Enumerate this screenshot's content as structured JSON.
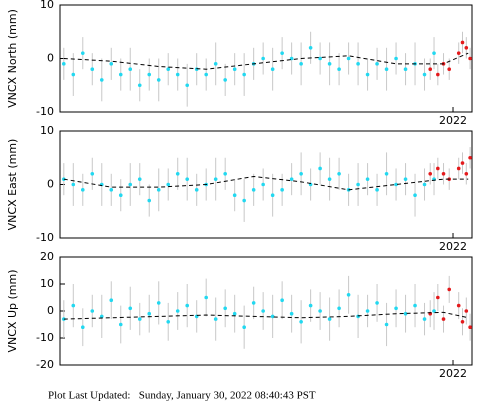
{
  "chart_data": [
    {
      "type": "scatter",
      "ylabel": "VNCX North (mm)",
      "xlim": [
        2019.93,
        2022.1
      ],
      "xticks": [
        2022
      ],
      "ylim": [
        -10,
        10
      ],
      "yticks": [
        -10,
        0,
        10
      ],
      "series": [
        {
          "color": "#22d8f0",
          "x": [
            2019.95,
            2020.0,
            2020.05,
            2020.1,
            2020.15,
            2020.2,
            2020.25,
            2020.3,
            2020.35,
            2020.4,
            2020.45,
            2020.5,
            2020.55,
            2020.6,
            2020.65,
            2020.7,
            2020.75,
            2020.8,
            2020.85,
            2020.9,
            2020.95,
            2021.0,
            2021.05,
            2021.1,
            2021.15,
            2021.2,
            2021.25,
            2021.3,
            2021.35,
            2021.4,
            2021.45,
            2021.5,
            2021.55,
            2021.6,
            2021.65,
            2021.7,
            2021.75,
            2021.8,
            2021.85,
            2021.9
          ],
          "values": [
            -1,
            -3,
            1,
            -2,
            -4,
            -1,
            -3,
            -2,
            -5,
            -3,
            -4,
            -2,
            -3,
            -5,
            -2,
            -3,
            -1,
            -4,
            -2,
            -3,
            -1,
            0,
            -2,
            1,
            0,
            -1,
            2,
            0,
            -1,
            -2,
            0,
            -1,
            -3,
            -1,
            -2,
            0,
            -2,
            -1,
            -3,
            1
          ],
          "errors": [
            3,
            4,
            3,
            3,
            4,
            3,
            3,
            4,
            3,
            3,
            4,
            3,
            3,
            4,
            3,
            3,
            4,
            3,
            3,
            4,
            3,
            3,
            4,
            3,
            3,
            4,
            3,
            3,
            4,
            3,
            3,
            4,
            3,
            3,
            4,
            3,
            3,
            4,
            3,
            3
          ]
        },
        {
          "color": "#e41a1c",
          "x": [
            2021.88,
            2021.92,
            2021.95,
            2021.98,
            2022.03,
            2022.05,
            2022.07,
            2022.09
          ],
          "values": [
            -2,
            -3,
            -1,
            -2,
            1,
            3,
            2,
            0
          ],
          "errors": [
            2,
            2,
            2,
            2,
            2,
            2,
            2,
            2
          ]
        },
        {
          "color": "#000000",
          "dashed": true,
          "x": [
            2019.95,
            2020.2,
            2020.45,
            2020.7,
            2020.95,
            2021.2,
            2021.45,
            2021.7,
            2021.95,
            2022.08
          ],
          "values": [
            0,
            -0.5,
            -1.5,
            -2,
            -1,
            0,
            0.5,
            -1,
            -1,
            1
          ]
        }
      ]
    },
    {
      "type": "scatter",
      "ylabel": "VNCX East (mm)",
      "xlim": [
        2019.93,
        2022.1
      ],
      "xticks": [
        2022
      ],
      "ylim": [
        -10,
        10
      ],
      "yticks": [
        -10,
        0,
        10
      ],
      "series": [
        {
          "color": "#22d8f0",
          "x": [
            2019.95,
            2020.0,
            2020.05,
            2020.1,
            2020.15,
            2020.2,
            2020.25,
            2020.3,
            2020.35,
            2020.4,
            2020.45,
            2020.5,
            2020.55,
            2020.6,
            2020.65,
            2020.7,
            2020.75,
            2020.8,
            2020.85,
            2020.9,
            2020.95,
            2021.0,
            2021.05,
            2021.1,
            2021.15,
            2021.2,
            2021.25,
            2021.3,
            2021.35,
            2021.4,
            2021.45,
            2021.5,
            2021.55,
            2021.6,
            2021.65,
            2021.7,
            2021.75,
            2021.8,
            2021.85,
            2021.9
          ],
          "values": [
            1,
            0,
            -1,
            2,
            0,
            -1,
            -2,
            0,
            1,
            -3,
            -1,
            0,
            2,
            1,
            -1,
            0,
            1,
            2,
            -2,
            -3,
            -1,
            0,
            -2,
            -1,
            1,
            2,
            0,
            3,
            1,
            2,
            -1,
            0,
            1,
            -1,
            2,
            0,
            1,
            -2,
            0,
            1
          ],
          "errors": [
            3,
            4,
            3,
            3,
            4,
            3,
            3,
            4,
            3,
            3,
            4,
            3,
            3,
            4,
            3,
            3,
            4,
            3,
            3,
            4,
            3,
            3,
            4,
            3,
            3,
            4,
            3,
            3,
            4,
            3,
            3,
            4,
            3,
            3,
            4,
            3,
            3,
            4,
            3,
            3
          ]
        },
        {
          "color": "#e41a1c",
          "x": [
            2021.88,
            2021.92,
            2021.95,
            2021.98,
            2022.03,
            2022.05,
            2022.07,
            2022.09
          ],
          "values": [
            2,
            3,
            2,
            1,
            3,
            4,
            2,
            5
          ],
          "errors": [
            2,
            2,
            2,
            2,
            2,
            2,
            2,
            2
          ]
        },
        {
          "color": "#000000",
          "dashed": true,
          "x": [
            2019.95,
            2020.2,
            2020.45,
            2020.7,
            2020.95,
            2021.2,
            2021.45,
            2021.7,
            2021.95,
            2022.08
          ],
          "values": [
            1,
            -0.5,
            -0.5,
            0,
            1.5,
            0.5,
            -1,
            0,
            1,
            1
          ]
        }
      ]
    },
    {
      "type": "scatter",
      "ylabel": "VNCX Up (mm)",
      "xlim": [
        2019.93,
        2022.1
      ],
      "xticks": [
        2022
      ],
      "ylim": [
        -20,
        20
      ],
      "yticks": [
        -20,
        -10,
        0,
        10,
        20
      ],
      "series": [
        {
          "color": "#22d8f0",
          "x": [
            2019.95,
            2020.0,
            2020.05,
            2020.1,
            2020.15,
            2020.2,
            2020.25,
            2020.3,
            2020.35,
            2020.4,
            2020.45,
            2020.5,
            2020.55,
            2020.6,
            2020.65,
            2020.7,
            2020.75,
            2020.8,
            2020.85,
            2020.9,
            2020.95,
            2021.0,
            2021.05,
            2021.1,
            2021.15,
            2021.2,
            2021.25,
            2021.3,
            2021.35,
            2021.4,
            2021.45,
            2021.5,
            2021.55,
            2021.6,
            2021.65,
            2021.7,
            2021.75,
            2021.8,
            2021.85,
            2021.9
          ],
          "values": [
            -3,
            2,
            -6,
            0,
            -2,
            4,
            -5,
            1,
            -3,
            -1,
            3,
            -4,
            0,
            2,
            -2,
            5,
            -3,
            1,
            -1,
            -6,
            3,
            0,
            -2,
            4,
            -1,
            -4,
            2,
            0,
            -3,
            1,
            6,
            -2,
            0,
            3,
            -5,
            1,
            -1,
            2,
            -3,
            0
          ],
          "errors": [
            7,
            8,
            7,
            6,
            8,
            7,
            7,
            8,
            6,
            7,
            8,
            7,
            7,
            8,
            6,
            7,
            8,
            7,
            7,
            8,
            6,
            7,
            8,
            7,
            7,
            8,
            6,
            7,
            8,
            7,
            7,
            8,
            6,
            7,
            8,
            7,
            7,
            8,
            6,
            7
          ]
        },
        {
          "color": "#e41a1c",
          "x": [
            2021.88,
            2021.92,
            2021.95,
            2021.98,
            2022.03,
            2022.05,
            2022.07,
            2022.09
          ],
          "values": [
            -1,
            5,
            -3,
            8,
            2,
            -4,
            0,
            -6
          ],
          "errors": [
            5,
            5,
            5,
            5,
            5,
            5,
            5,
            5
          ]
        },
        {
          "color": "#000000",
          "dashed": true,
          "x": [
            2019.95,
            2020.2,
            2020.45,
            2020.7,
            2020.95,
            2021.2,
            2021.45,
            2021.7,
            2021.95,
            2022.08
          ],
          "values": [
            -3,
            -2.5,
            -2,
            -1.5,
            -2,
            -2.5,
            -2,
            -1,
            -0.5,
            -2.5
          ]
        }
      ]
    }
  ],
  "footer": "Plot Last Updated:   Sunday, January 30, 2022 08:40:43 PST"
}
